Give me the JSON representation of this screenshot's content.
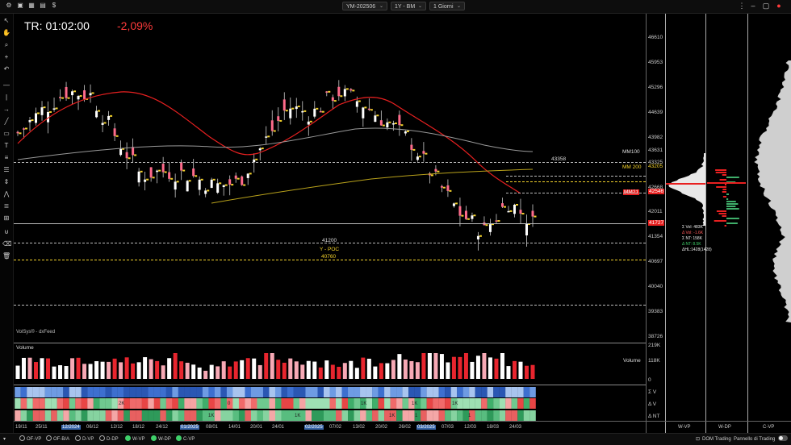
{
  "topbar": {
    "symbol": "YM-202506",
    "timeframe": "1Y - BM",
    "period": "1 Giorni"
  },
  "chart": {
    "tr_label": "TR: 01:02:00",
    "change_pct": "-2,09%",
    "source_label": "VolSys® - dxFeed",
    "volume_title": "Volume",
    "volume_axis_label": "Volume",
    "price_ticks": [
      "46610",
      "45953",
      "45296",
      "44639",
      "43982",
      "43631",
      "43325",
      "43205",
      "42668",
      "42546",
      "42011",
      "41727",
      "41354",
      "40697",
      "40040",
      "39383",
      "38726"
    ],
    "volume_ticks": [
      "219K",
      "118K",
      "0"
    ],
    "delta_labels": [
      "Σ V",
      "Δ V",
      "Δ NT"
    ],
    "levels": {
      "l43358": "43358",
      "mm100": "MM100",
      "mm200": "MM 200",
      "mm21": "MM21",
      "l41200": "41200",
      "ypoc": "Y - POC",
      "l40760": "40760"
    },
    "dates": [
      "19/11",
      "25/11",
      "12/2024",
      "06/12",
      "12/12",
      "18/12",
      "24/12",
      "01/2025",
      "08/01",
      "14/01",
      "20/01",
      "24/01",
      "02/2025",
      "07/02",
      "13/02",
      "20/02",
      "26/02",
      "03/2025",
      "07/03",
      "12/03",
      "18/03",
      "24/03"
    ],
    "heat_labels": [
      "2K",
      "0",
      "1K",
      "1K",
      "1K",
      "1K",
      "1K",
      "1K",
      "1",
      "1"
    ],
    "stats": [
      "Σ Vol: 483K",
      "Δ Vol: -1.6K",
      "Σ NT: 158K",
      "Δ NT: 8.5K",
      "ΔHL:1428(1428)"
    ]
  },
  "chart_data": {
    "type": "candlestick",
    "instrument": "YM-202506",
    "period": "1 Giorni",
    "x": [
      "19/11",
      "25/11",
      "12/2024",
      "06/12",
      "12/12",
      "18/12",
      "24/12",
      "01/2025",
      "08/01",
      "14/01",
      "20/01",
      "24/01",
      "02/2025",
      "07/02",
      "13/02",
      "20/02",
      "26/02",
      "03/2025",
      "07/03",
      "12/03",
      "18/03",
      "24/03"
    ],
    "close": [
      44100,
      44700,
      45200,
      45100,
      44000,
      43000,
      43100,
      43000,
      42700,
      42800,
      43800,
      44800,
      44600,
      45200,
      44900,
      44400,
      43900,
      42900,
      42000,
      41500,
      42300,
      41727
    ],
    "volume": [
      160,
      150,
      170,
      190,
      140,
      150,
      180,
      100,
      150,
      130,
      170,
      160,
      140,
      120,
      150,
      190,
      200,
      180,
      170,
      190,
      120,
      110
    ],
    "ylim": [
      38726,
      46610
    ],
    "reference_levels": {
      "MM100": 43631,
      "MM 200": 43205,
      "MM21": 42546,
      "43358": 43358,
      "41200": 41200,
      "40760": 40760
    },
    "last_price": 41727
  },
  "side_panels": {
    "wvp": "W-VP",
    "wdp": "W-DP",
    "cvp": "C-VP"
  },
  "bottombar": {
    "items": [
      "OF-VP",
      "OF-B/A",
      "D-VP",
      "D-DP",
      "W-VP",
      "W-DP",
      "C-VP"
    ],
    "active": [
      "W-VP",
      "W-DP",
      "C-VP"
    ],
    "dom": "DOM Trading",
    "trading_panel": "Pannello di Trading"
  },
  "colors": {
    "up": "#ffffff",
    "down": "#ff3b3b",
    "accent": "#3fd06a",
    "mm21": "#e82020",
    "mm200": "#b9a21b",
    "mm100": "#999999"
  }
}
